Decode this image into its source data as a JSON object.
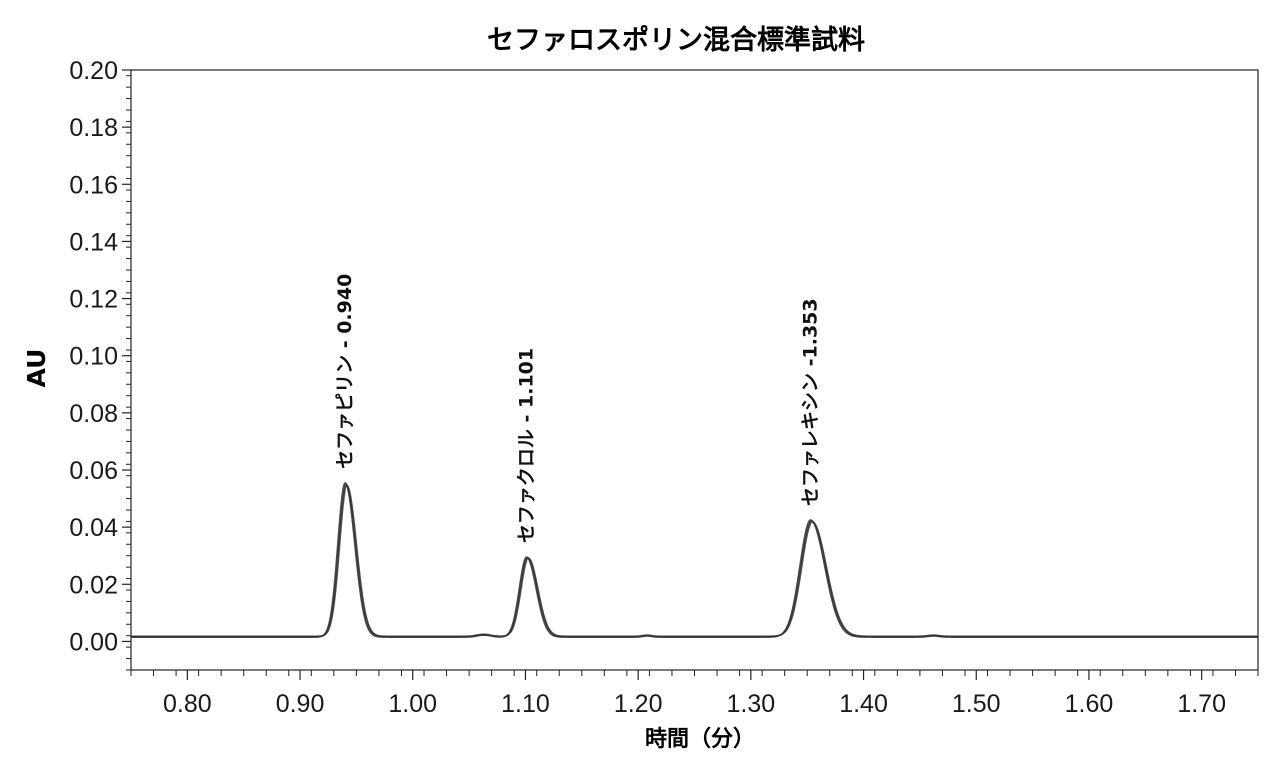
{
  "chart_data": {
    "type": "line",
    "title": "セファロスポリン混合標準試料",
    "xlabel": "時間（分）",
    "ylabel": "AU",
    "xlim": [
      0.75,
      1.75
    ],
    "ylim": [
      -0.01,
      0.2
    ],
    "x_ticks": [
      "0.80",
      "0.90",
      "1.00",
      "1.10",
      "1.20",
      "1.30",
      "1.40",
      "1.50",
      "1.60",
      "1.70"
    ],
    "y_ticks": [
      "0.00",
      "0.02",
      "0.04",
      "0.06",
      "0.08",
      "0.10",
      "0.12",
      "0.14",
      "0.16",
      "0.18",
      "0.20"
    ],
    "grid": false,
    "baseline": 0.0015,
    "peaks": [
      {
        "label": "セファピリン - 0.940",
        "rt": 0.94,
        "height": 0.054,
        "sigma_left": 0.0065,
        "sigma_right": 0.0085
      },
      {
        "label": "セファクロル - 1.101",
        "rt": 1.101,
        "height": 0.028,
        "sigma_left": 0.0065,
        "sigma_right": 0.0085
      },
      {
        "label": "セファレキシン -1.353",
        "rt": 1.353,
        "height": 0.041,
        "sigma_left": 0.0095,
        "sigma_right": 0.0125
      }
    ],
    "minor_bumps": [
      {
        "rt": 1.063,
        "height": 0.0007,
        "sigma": 0.006
      },
      {
        "rt": 1.208,
        "height": 0.0004,
        "sigma": 0.004
      },
      {
        "rt": 1.462,
        "height": 0.0004,
        "sigma": 0.005
      }
    ],
    "line_color": "#333333"
  }
}
